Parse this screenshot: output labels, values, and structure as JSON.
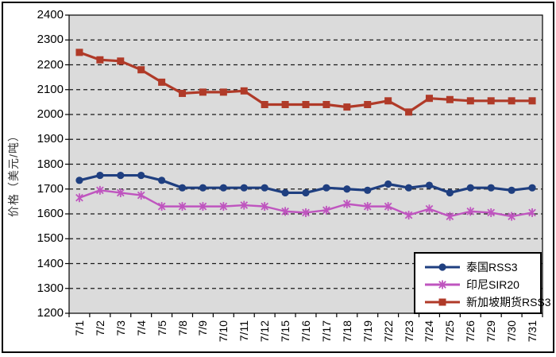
{
  "chart_data": {
    "type": "line",
    "title": "",
    "ylabel": "价格（美元/吨）",
    "xlabel": "",
    "ylim": [
      1200,
      2400
    ],
    "ytick_step": 100,
    "grid": "horizontal-dashed",
    "plot_bg": "#dbdbdb",
    "legend_position": "bottom-right",
    "categories": [
      "7/1",
      "7/2",
      "7/3",
      "7/4",
      "7/5",
      "7/8",
      "7/9",
      "7/10",
      "7/11",
      "7/12",
      "7/15",
      "7/16",
      "7/17",
      "7/18",
      "7/19",
      "7/22",
      "7/23",
      "7/24",
      "7/25",
      "7/26",
      "7/29",
      "7/30",
      "7/31"
    ],
    "series": [
      {
        "name": "泰国RSS3",
        "marker": "circle",
        "color": "#1f3f80",
        "values": [
          1735,
          1755,
          1755,
          1755,
          1735,
          1705,
          1705,
          1705,
          1705,
          1705,
          1685,
          1685,
          1705,
          1700,
          1695,
          1720,
          1705,
          1715,
          1685,
          1705,
          1705,
          1695,
          1705
        ]
      },
      {
        "name": "印尼SIR20",
        "marker": "star",
        "color": "#bf55bf",
        "values": [
          1665,
          1695,
          1685,
          1675,
          1630,
          1630,
          1630,
          1630,
          1635,
          1630,
          1610,
          1605,
          1615,
          1640,
          1630,
          1630,
          1595,
          1620,
          1590,
          1610,
          1605,
          1590,
          1605
        ]
      },
      {
        "name": "新加坡期货RSS3",
        "marker": "square",
        "color": "#b03a28",
        "values": [
          2250,
          2220,
          2215,
          2180,
          2130,
          2085,
          2090,
          2090,
          2095,
          2040,
          2040,
          2040,
          2040,
          2030,
          2040,
          2055,
          2010,
          2065,
          2060,
          2055,
          2055,
          2055,
          2055
        ]
      }
    ]
  }
}
